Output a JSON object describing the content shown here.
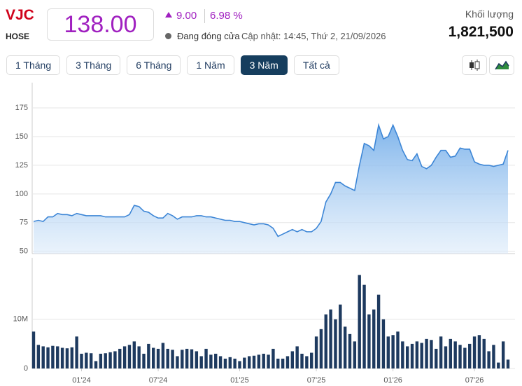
{
  "header": {
    "symbol": "VJC",
    "exchange": "HOSE",
    "price": "138.00",
    "change": "9.00",
    "change_pct": "6.98 %",
    "status": "Đang đóng cửa",
    "updated": "Cập nhật: 14:45, Thứ 2, 21/09/2026",
    "volume_label": "Khối lượng",
    "volume": "1,821,500"
  },
  "buttons": {
    "labels": [
      "1 Tháng",
      "3 Tháng",
      "6 Tháng",
      "1 Năm",
      "3 Năm",
      "Tất cả"
    ],
    "active": 4
  },
  "chart_data": [
    {
      "type": "area",
      "color": "#3d86d6",
      "ylim": [
        48,
        197
      ],
      "yticks": [
        50,
        75,
        100,
        125,
        150,
        175
      ],
      "grid": true,
      "values": [
        76,
        77,
        76,
        80,
        80,
        83,
        82,
        82,
        81,
        83,
        82,
        81,
        81,
        81,
        81,
        80,
        80,
        80,
        80,
        80,
        82,
        90,
        89,
        85,
        84,
        81,
        79,
        79,
        83,
        81,
        78,
        80,
        80,
        80,
        81,
        81,
        80,
        80,
        79,
        78,
        77,
        77,
        76,
        76,
        75,
        74,
        73,
        74,
        74,
        73,
        70,
        63,
        65,
        67,
        69,
        67,
        69,
        67,
        67,
        70,
        76,
        93,
        100,
        110,
        110,
        107,
        105,
        103,
        125,
        144,
        142,
        138,
        160,
        148,
        150,
        160,
        150,
        138,
        130,
        129,
        135,
        124,
        122,
        125,
        132,
        138,
        138,
        132,
        133,
        140,
        139,
        139,
        128,
        126,
        125,
        125,
        124,
        125,
        126,
        138
      ]
    },
    {
      "type": "bar",
      "color": "#1e3a5f",
      "ylim": [
        0,
        22.5
      ],
      "yticks": [
        0,
        {
          "value": 10,
          "label": "10M"
        }
      ],
      "grid": true,
      "categories": [
        null,
        null,
        null,
        null,
        null,
        null,
        null,
        null,
        null,
        null,
        "01'24",
        null,
        null,
        null,
        null,
        null,
        null,
        null,
        null,
        null,
        null,
        null,
        null,
        null,
        null,
        null,
        "07'24",
        null,
        null,
        null,
        null,
        null,
        null,
        null,
        null,
        null,
        null,
        null,
        null,
        null,
        null,
        null,
        null,
        "01'25",
        null,
        null,
        null,
        null,
        null,
        null,
        null,
        null,
        null,
        null,
        null,
        null,
        null,
        null,
        null,
        "07'25",
        null,
        null,
        null,
        null,
        null,
        null,
        null,
        null,
        null,
        null,
        null,
        null,
        null,
        null,
        null,
        "01'26",
        null,
        null,
        null,
        null,
        null,
        null,
        null,
        null,
        null,
        null,
        null,
        null,
        null,
        null,
        null,
        null,
        "07'26",
        null,
        null,
        null,
        null,
        null,
        null,
        null
      ],
      "values": [
        7.5,
        4.8,
        4.5,
        4.3,
        4.6,
        4.5,
        4.2,
        4.1,
        4.3,
        6.5,
        3.0,
        3.2,
        3.1,
        1.5,
        3.0,
        3.1,
        3.3,
        3.5,
        4.0,
        4.5,
        4.8,
        5.5,
        4.5,
        3.0,
        5.0,
        4.2,
        4.0,
        5.2,
        4.0,
        3.8,
        2.5,
        3.8,
        4.0,
        3.9,
        3.5,
        2.5,
        4.0,
        2.8,
        3.0,
        2.5,
        2.0,
        2.3,
        2.0,
        1.5,
        2.2,
        2.5,
        2.6,
        2.8,
        3.0,
        2.8,
        4.0,
        2.0,
        2.0,
        2.5,
        3.5,
        4.5,
        3.0,
        2.5,
        3.2,
        6.5,
        8.0,
        11.0,
        12.0,
        10.0,
        13.0,
        8.5,
        7.0,
        5.5,
        19.0,
        17.0,
        11.0,
        12.0,
        15.0,
        10.0,
        6.5,
        6.8,
        7.5,
        5.5,
        4.5,
        5.0,
        5.5,
        5.2,
        6.0,
        5.8,
        4.0,
        6.5,
        4.5,
        6.0,
        5.5,
        4.8,
        4.2,
        5.0,
        6.5,
        6.8,
        6.0,
        3.5,
        4.8,
        1.2,
        5.5,
        1.8
      ]
    }
  ]
}
